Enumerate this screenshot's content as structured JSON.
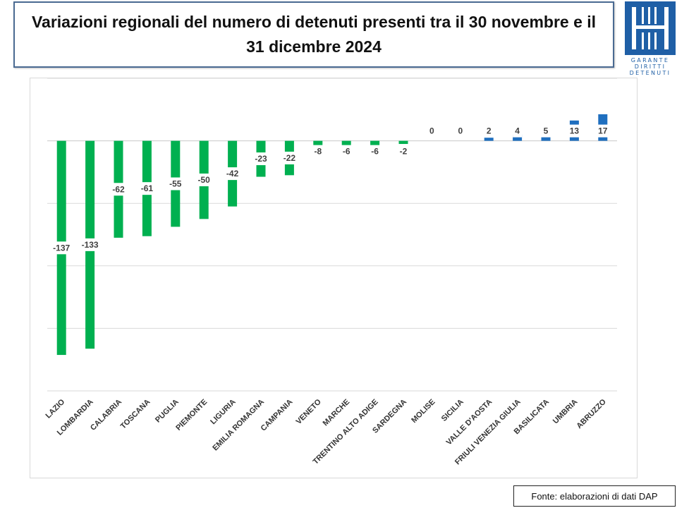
{
  "header": {
    "title_line1": "Variazioni regionali del numero di detenuti presenti tra il 30 novembre e il",
    "title_line2": "31 dicembre 2024"
  },
  "logo": {
    "line1": "GARANTE",
    "line2": "DIRITTI",
    "line3": "DETENUTI",
    "color": "#1f5fa6"
  },
  "source": {
    "text": "Fonte: elaborazioni di dati DAP"
  },
  "chart_data": {
    "type": "bar",
    "title": "Variazioni regionali del numero di detenuti presenti tra il 30 novembre e il 31 dicembre 2024",
    "categories": [
      "LAZIO",
      "LOMBARDIA",
      "CALABRIA",
      "TOSCANA",
      "PUGLIA",
      "PIEMONTE",
      "LIGURIA",
      "EMILIA ROMAGNA",
      "CAMPANIA",
      "VENETO",
      "MARCHE",
      "TRENTINO ALTO ADIGE",
      "SARDEGNA",
      "MOLISE",
      "SICILIA",
      "VALLE D'AOSTA",
      "FRIULI VENEZIA GIULIA",
      "BASILICATA",
      "UMBRIA",
      "ABRUZZO"
    ],
    "values": [
      -137,
      -133,
      -62,
      -61,
      -55,
      -50,
      -42,
      -23,
      -22,
      -8,
      -6,
      -6,
      -2,
      0,
      0,
      2,
      4,
      5,
      13,
      17
    ],
    "data_labels": [
      "-137",
      "-133",
      "-62",
      "-61",
      "-55",
      "-50",
      "-42",
      "-23",
      "-22",
      "-8",
      "-6",
      "-6",
      "-2",
      "0",
      "0",
      "2",
      "4",
      "5",
      "13",
      "17"
    ],
    "ylim": [
      -160,
      40
    ],
    "gridlines": [
      40,
      0,
      -40,
      -80,
      -120,
      -160
    ],
    "grid": true,
    "negative_color": "#00b050",
    "positive_color": "#1f6fbf",
    "y_tick_labels_visible": false,
    "legend": "none"
  }
}
